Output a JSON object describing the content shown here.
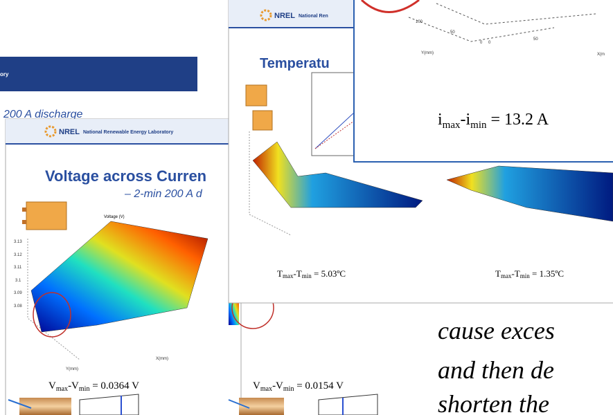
{
  "slides": [
    {
      "header": "ory",
      "subtitle": "200 A discharge"
    },
    {
      "logo": "NREL",
      "org": "National Renewable Energy Laboratory",
      "title": "Voltage across Curren",
      "subtitle": "– 2-min 200 A d",
      "plot_label": "Voltage (V)",
      "yticks": [
        "3.13",
        "3.12",
        "3.11",
        "3.1",
        "3.09",
        "3.08"
      ],
      "axis_y": "Y(mm)",
      "axis_x": "X(mm)",
      "equations": [
        [
          "V",
          "max",
          "-V",
          "min",
          " = 0.0364 V"
        ],
        [
          "V",
          "max",
          "-V",
          "min",
          " = 0.0154 V"
        ]
      ]
    },
    {
      "logo": "NREL",
      "org": "National Ren",
      "title": "Temperatu",
      "equations": [
        [
          "T",
          "max",
          "-T",
          "min",
          " = 5.03ºC"
        ],
        [
          "T",
          "max",
          "-T",
          "min",
          " = 1.35ºC"
        ]
      ]
    },
    {
      "ticks": [
        "100",
        "50",
        "0",
        "0",
        "50"
      ],
      "axis_y": "Y(mm)",
      "axis_x": "X(m",
      "equation": [
        "i",
        "max",
        "-i",
        "min",
        " = 13.2 A"
      ]
    }
  ],
  "body_text": [
    "cause exces",
    "and then de",
    "shorten the"
  ]
}
